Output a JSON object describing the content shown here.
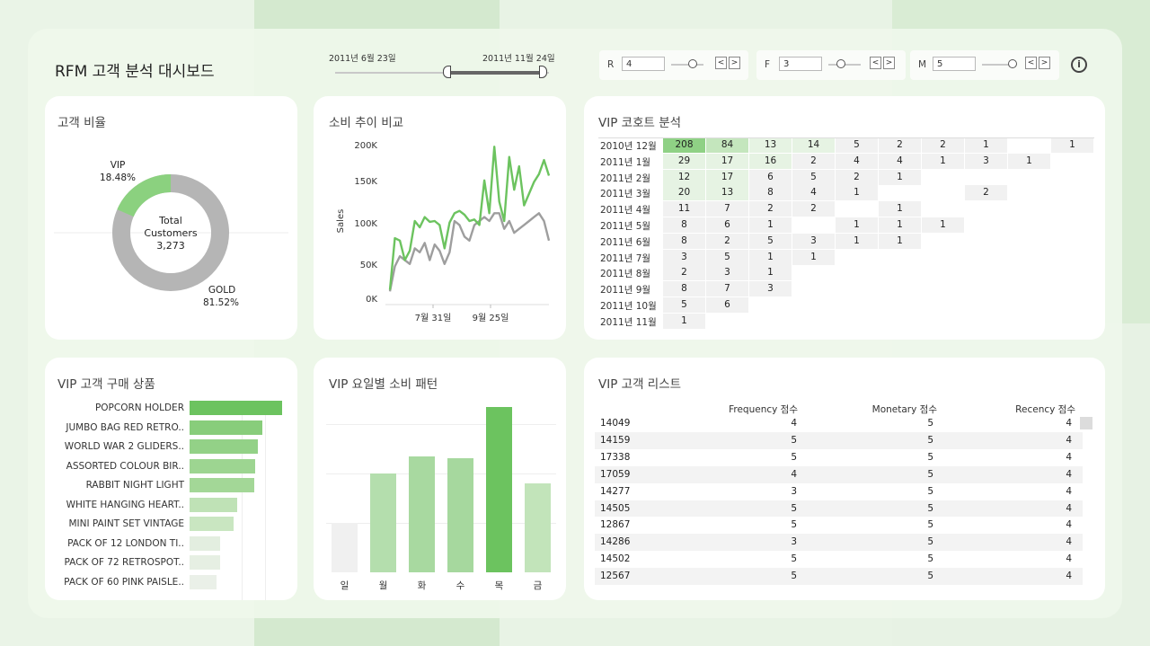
{
  "header": {
    "title": "RFM 고객 분석 대시보드"
  },
  "date_range": {
    "start": "2011년 6월 23일",
    "end": "2011년 11월 24일"
  },
  "filters": [
    {
      "label": "R",
      "value": "4"
    },
    {
      "label": "F",
      "value": "3"
    },
    {
      "label": "M",
      "value": "5"
    }
  ],
  "controls": {
    "prev": "<",
    "next": ">",
    "info": "i"
  },
  "donut": {
    "title": "고객 비율",
    "center_line1": "Total",
    "center_line2": "Customers",
    "center_value": "3,273",
    "vip_label": "VIP",
    "vip_pct": "18.48%",
    "gold_label": "GOLD",
    "gold_pct": "81.52%",
    "vip_color": "#8bd17f",
    "gold_color": "#b5b5b5"
  },
  "trend": {
    "title": "소비 추이 비교",
    "ylabel": "Sales",
    "yticks": [
      "200K",
      "150K",
      "100K",
      "50K",
      "0K"
    ],
    "xticks": [
      "7월 31일",
      "9월 25일"
    ]
  },
  "cohort": {
    "title": "VIP 코호트 분석",
    "rows": [
      {
        "label": "2010년 12월",
        "cells": [
          "208",
          "84",
          "13",
          "14",
          "5",
          "2",
          "2",
          "1",
          "",
          "1"
        ]
      },
      {
        "label": "2011년 1월",
        "cells": [
          "29",
          "17",
          "16",
          "2",
          "4",
          "4",
          "1",
          "3",
          "1"
        ]
      },
      {
        "label": "2011년 2월",
        "cells": [
          "12",
          "17",
          "6",
          "5",
          "2",
          "1"
        ]
      },
      {
        "label": "2011년 3월",
        "cells": [
          "20",
          "13",
          "8",
          "4",
          "1",
          "",
          "",
          "2"
        ]
      },
      {
        "label": "2011년 4월",
        "cells": [
          "11",
          "7",
          "2",
          "2",
          "",
          "1"
        ]
      },
      {
        "label": "2011년 5월",
        "cells": [
          "8",
          "6",
          "1",
          "",
          "1",
          "1",
          "1"
        ]
      },
      {
        "label": "2011년 6월",
        "cells": [
          "8",
          "2",
          "5",
          "3",
          "1",
          "1"
        ]
      },
      {
        "label": "2011년 7월",
        "cells": [
          "3",
          "5",
          "1",
          "1"
        ]
      },
      {
        "label": "2011년 8월",
        "cells": [
          "2",
          "3",
          "1"
        ]
      },
      {
        "label": "2011년 9월",
        "cells": [
          "8",
          "7",
          "3"
        ]
      },
      {
        "label": "2011년 10월",
        "cells": [
          "5",
          "6"
        ]
      },
      {
        "label": "2011년 11월",
        "cells": [
          "1"
        ]
      }
    ]
  },
  "products": {
    "title": "VIP 고객 구매 상품",
    "items": [
      {
        "label": "POPCORN HOLDER",
        "value": 1.0
      },
      {
        "label": "JUMBO BAG RED RETRO..",
        "value": 0.79
      },
      {
        "label": "WORLD WAR 2 GLIDERS..",
        "value": 0.74
      },
      {
        "label": "ASSORTED COLOUR BIR..",
        "value": 0.71
      },
      {
        "label": "RABBIT NIGHT LIGHT",
        "value": 0.7
      },
      {
        "label": "WHITE HANGING HEART..",
        "value": 0.51
      },
      {
        "label": "MINI PAINT SET VINTAGE",
        "value": 0.48
      },
      {
        "label": "PACK OF 12 LONDON TI..",
        "value": 0.33
      },
      {
        "label": "PACK OF 72 RETROSPOT..",
        "value": 0.33
      },
      {
        "label": "PACK OF 60 PINK PAISLE..",
        "value": 0.29
      }
    ]
  },
  "weekday": {
    "title": "VIP 요일별 소비 패턴",
    "days": [
      {
        "label": "일",
        "value": 0.3
      },
      {
        "label": "월",
        "value": 0.6
      },
      {
        "label": "화",
        "value": 0.7
      },
      {
        "label": "수",
        "value": 0.69
      },
      {
        "label": "목",
        "value": 1.0
      },
      {
        "label": "금",
        "value": 0.54
      }
    ]
  },
  "vip_list": {
    "title": "VIP 고객 리스트",
    "headers": {
      "frequency": "Frequency 점수",
      "monetary": "Monetary 점수",
      "recency": "Recency 점수"
    },
    "rows": [
      {
        "id": "14049",
        "f": "4",
        "m": "5",
        "r": "4"
      },
      {
        "id": "14159",
        "f": "5",
        "m": "5",
        "r": "4"
      },
      {
        "id": "17338",
        "f": "5",
        "m": "5",
        "r": "4"
      },
      {
        "id": "17059",
        "f": "4",
        "m": "5",
        "r": "4"
      },
      {
        "id": "14277",
        "f": "3",
        "m": "5",
        "r": "4"
      },
      {
        "id": "14505",
        "f": "5",
        "m": "5",
        "r": "4"
      },
      {
        "id": "12867",
        "f": "5",
        "m": "5",
        "r": "4"
      },
      {
        "id": "14286",
        "f": "3",
        "m": "5",
        "r": "4"
      },
      {
        "id": "14502",
        "f": "5",
        "m": "5",
        "r": "4"
      },
      {
        "id": "12567",
        "f": "5",
        "m": "5",
        "r": "4"
      }
    ]
  },
  "chart_data": [
    {
      "type": "pie",
      "title": "고객 비율",
      "categories": [
        "VIP",
        "GOLD"
      ],
      "values": [
        18.48,
        81.52
      ]
    },
    {
      "type": "line",
      "title": "소비 추이 비교",
      "ylabel": "Sales",
      "ylim": [
        0,
        200000
      ],
      "series": [
        {
          "values": [
            12000,
            78000,
            75000,
            50000,
            62000,
            100000,
            92000,
            105000,
            99000,
            100000,
            95000,
            65000,
            98000,
            110000,
            113000,
            108000,
            100000,
            102000,
            95000,
            152000,
            110000,
            195000,
            125000,
            100000,
            182000,
            140000,
            170000,
            120000,
            135000,
            150000,
            160000,
            178000,
            158000
          ]
        },
        {
          "values": [
            10000,
            42000,
            55000,
            50000,
            45000,
            65000,
            60000,
            72000,
            50000,
            70000,
            62000,
            45000,
            60000,
            100000,
            95000,
            80000,
            75000,
            95000,
            100000,
            105000,
            100000,
            110000,
            110000,
            90000,
            100000,
            85000,
            90000,
            95000,
            100000,
            105000,
            110000,
            100000,
            75000
          ]
        }
      ]
    }
  ]
}
